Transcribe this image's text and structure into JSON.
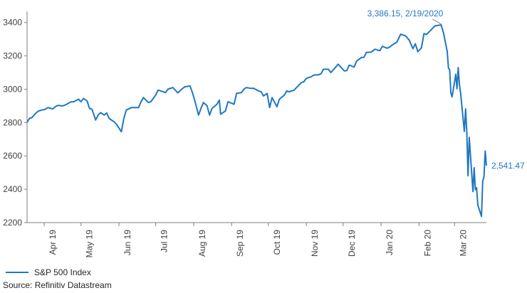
{
  "chart_data": {
    "type": "line",
    "title": "",
    "xlabel": "",
    "ylabel": "",
    "ylim": [
      2200,
      3450
    ],
    "yticks": [
      2200,
      2400,
      2600,
      2800,
      3000,
      3200,
      3400
    ],
    "ytick_labels": [
      "2200",
      "2400",
      "2600",
      "2800",
      "3000",
      "3200",
      "3400"
    ],
    "xlim": [
      "2019-03-18",
      "2020-03-27"
    ],
    "xticks": [
      {
        "date": "2019-04-01",
        "label": "Apr 19"
      },
      {
        "date": "2019-05-01",
        "label": "May 19"
      },
      {
        "date": "2019-06-01",
        "label": "Jun 19"
      },
      {
        "date": "2019-07-01",
        "label": "Jul 19"
      },
      {
        "date": "2019-08-01",
        "label": "Aug 19"
      },
      {
        "date": "2019-09-01",
        "label": "Sep 19"
      },
      {
        "date": "2019-10-01",
        "label": "Oct 19"
      },
      {
        "date": "2019-11-01",
        "label": "Nov 19"
      },
      {
        "date": "2019-12-01",
        "label": "Dec 19"
      },
      {
        "date": "2020-01-01",
        "label": "Jan 20"
      },
      {
        "date": "2020-02-01",
        "label": "Feb 20"
      },
      {
        "date": "2020-03-01",
        "label": "Mar 20"
      }
    ],
    "grid": false,
    "legend_position": "bottom-left",
    "series": [
      {
        "name": "S&P 500 Index",
        "color": "#1f77c4",
        "points": [
          [
            "2019-03-18",
            2802
          ],
          [
            "2019-03-20",
            2825
          ],
          [
            "2019-03-22",
            2830
          ],
          [
            "2019-03-25",
            2855
          ],
          [
            "2019-03-27",
            2868
          ],
          [
            "2019-03-29",
            2873
          ],
          [
            "2019-04-02",
            2880
          ],
          [
            "2019-04-04",
            2890
          ],
          [
            "2019-04-08",
            2882
          ],
          [
            "2019-04-10",
            2895
          ],
          [
            "2019-04-12",
            2903
          ],
          [
            "2019-04-16",
            2900
          ],
          [
            "2019-04-18",
            2905
          ],
          [
            "2019-04-23",
            2925
          ],
          [
            "2019-04-25",
            2925
          ],
          [
            "2019-04-29",
            2940
          ],
          [
            "2019-05-01",
            2925
          ],
          [
            "2019-05-03",
            2945
          ],
          [
            "2019-05-06",
            2930
          ],
          [
            "2019-05-08",
            2885
          ],
          [
            "2019-05-10",
            2880
          ],
          [
            "2019-05-13",
            2815
          ],
          [
            "2019-05-15",
            2845
          ],
          [
            "2019-05-17",
            2860
          ],
          [
            "2019-05-20",
            2845
          ],
          [
            "2019-05-22",
            2858
          ],
          [
            "2019-05-24",
            2825
          ],
          [
            "2019-05-28",
            2805
          ],
          [
            "2019-05-30",
            2790
          ],
          [
            "2019-06-03",
            2745
          ],
          [
            "2019-06-05",
            2825
          ],
          [
            "2019-06-07",
            2875
          ],
          [
            "2019-06-11",
            2890
          ],
          [
            "2019-06-13",
            2890
          ],
          [
            "2019-06-17",
            2890
          ],
          [
            "2019-06-19",
            2925
          ],
          [
            "2019-06-21",
            2950
          ],
          [
            "2019-06-25",
            2920
          ],
          [
            "2019-06-27",
            2925
          ],
          [
            "2019-07-01",
            2965
          ],
          [
            "2019-07-03",
            2995
          ],
          [
            "2019-07-05",
            2990
          ],
          [
            "2019-07-09",
            2980
          ],
          [
            "2019-07-11",
            3000
          ],
          [
            "2019-07-15",
            3010
          ],
          [
            "2019-07-17",
            2995
          ],
          [
            "2019-07-19",
            2978
          ],
          [
            "2019-07-23",
            3005
          ],
          [
            "2019-07-25",
            3015
          ],
          [
            "2019-07-29",
            3020
          ],
          [
            "2019-07-31",
            2980
          ],
          [
            "2019-08-02",
            2930
          ],
          [
            "2019-08-05",
            2845
          ],
          [
            "2019-08-07",
            2885
          ],
          [
            "2019-08-09",
            2920
          ],
          [
            "2019-08-12",
            2900
          ],
          [
            "2019-08-14",
            2845
          ],
          [
            "2019-08-16",
            2885
          ],
          [
            "2019-08-20",
            2910
          ],
          [
            "2019-08-22",
            2935
          ],
          [
            "2019-08-23",
            2850
          ],
          [
            "2019-08-27",
            2870
          ],
          [
            "2019-08-29",
            2925
          ],
          [
            "2019-09-03",
            2910
          ],
          [
            "2019-09-05",
            2975
          ],
          [
            "2019-09-09",
            2980
          ],
          [
            "2019-09-11",
            3000
          ],
          [
            "2019-09-13",
            3010
          ],
          [
            "2019-09-17",
            3005
          ],
          [
            "2019-09-19",
            3006
          ],
          [
            "2019-09-23",
            2990
          ],
          [
            "2019-09-25",
            2985
          ],
          [
            "2019-09-27",
            2960
          ],
          [
            "2019-09-30",
            2975
          ],
          [
            "2019-10-02",
            2890
          ],
          [
            "2019-10-04",
            2950
          ],
          [
            "2019-10-08",
            2895
          ],
          [
            "2019-10-10",
            2940
          ],
          [
            "2019-10-14",
            2965
          ],
          [
            "2019-10-16",
            2990
          ],
          [
            "2019-10-18",
            2985
          ],
          [
            "2019-10-22",
            2995
          ],
          [
            "2019-10-24",
            3010
          ],
          [
            "2019-10-28",
            3040
          ],
          [
            "2019-10-30",
            3045
          ],
          [
            "2019-11-01",
            3065
          ],
          [
            "2019-11-05",
            3075
          ],
          [
            "2019-11-07",
            3085
          ],
          [
            "2019-11-11",
            3087
          ],
          [
            "2019-11-13",
            3093
          ],
          [
            "2019-11-15",
            3120
          ],
          [
            "2019-11-19",
            3120
          ],
          [
            "2019-11-21",
            3100
          ],
          [
            "2019-11-25",
            3133
          ],
          [
            "2019-11-27",
            3150
          ],
          [
            "2019-12-02",
            3110
          ],
          [
            "2019-12-04",
            3112
          ],
          [
            "2019-12-06",
            3145
          ],
          [
            "2019-12-10",
            3133
          ],
          [
            "2019-12-12",
            3168
          ],
          [
            "2019-12-16",
            3191
          ],
          [
            "2019-12-18",
            3191
          ],
          [
            "2019-12-20",
            3221
          ],
          [
            "2019-12-24",
            3223
          ],
          [
            "2019-12-27",
            3240
          ],
          [
            "2019-12-31",
            3231
          ],
          [
            "2020-01-02",
            3257
          ],
          [
            "2020-01-06",
            3246
          ],
          [
            "2020-01-08",
            3253
          ],
          [
            "2020-01-10",
            3265
          ],
          [
            "2020-01-14",
            3283
          ],
          [
            "2020-01-17",
            3330
          ],
          [
            "2020-01-21",
            3320
          ],
          [
            "2020-01-24",
            3295
          ],
          [
            "2020-01-27",
            3243
          ],
          [
            "2020-01-29",
            3273
          ],
          [
            "2020-01-31",
            3225
          ],
          [
            "2020-02-03",
            3248
          ],
          [
            "2020-02-05",
            3334
          ],
          [
            "2020-02-07",
            3328
          ],
          [
            "2020-02-11",
            3357
          ],
          [
            "2020-02-13",
            3373
          ],
          [
            "2020-02-14",
            3380
          ],
          [
            "2020-02-19",
            3386.15
          ],
          [
            "2020-02-21",
            3338
          ],
          [
            "2020-02-24",
            3225
          ],
          [
            "2020-02-25",
            3128
          ],
          [
            "2020-02-26",
            3116
          ],
          [
            "2020-02-27",
            2979
          ],
          [
            "2020-02-28",
            2954
          ],
          [
            "2020-03-02",
            3090
          ],
          [
            "2020-03-03",
            3003
          ],
          [
            "2020-03-04",
            3130
          ],
          [
            "2020-03-05",
            3024
          ],
          [
            "2020-03-06",
            2972
          ],
          [
            "2020-03-09",
            2747
          ],
          [
            "2020-03-10",
            2882
          ],
          [
            "2020-03-11",
            2741
          ],
          [
            "2020-03-12",
            2481
          ],
          [
            "2020-03-13",
            2711
          ],
          [
            "2020-03-16",
            2386
          ],
          [
            "2020-03-17",
            2529
          ],
          [
            "2020-03-18",
            2398
          ],
          [
            "2020-03-19",
            2409
          ],
          [
            "2020-03-20",
            2305
          ],
          [
            "2020-03-23",
            2237
          ],
          [
            "2020-03-24",
            2447
          ],
          [
            "2020-03-25",
            2476
          ],
          [
            "2020-03-26",
            2630
          ],
          [
            "2020-03-27",
            2541.47
          ]
        ]
      }
    ],
    "annotations": [
      {
        "text": "3,386.15, 2/19/2020",
        "date": "2020-02-19",
        "value": 3386.15
      },
      {
        "text": "2,541.47",
        "date": "2020-03-27",
        "value": 2541.47
      }
    ]
  },
  "legend": {
    "label": "S&P 500 Index"
  },
  "source": {
    "text": "Source: Refinitiv Datastream"
  }
}
